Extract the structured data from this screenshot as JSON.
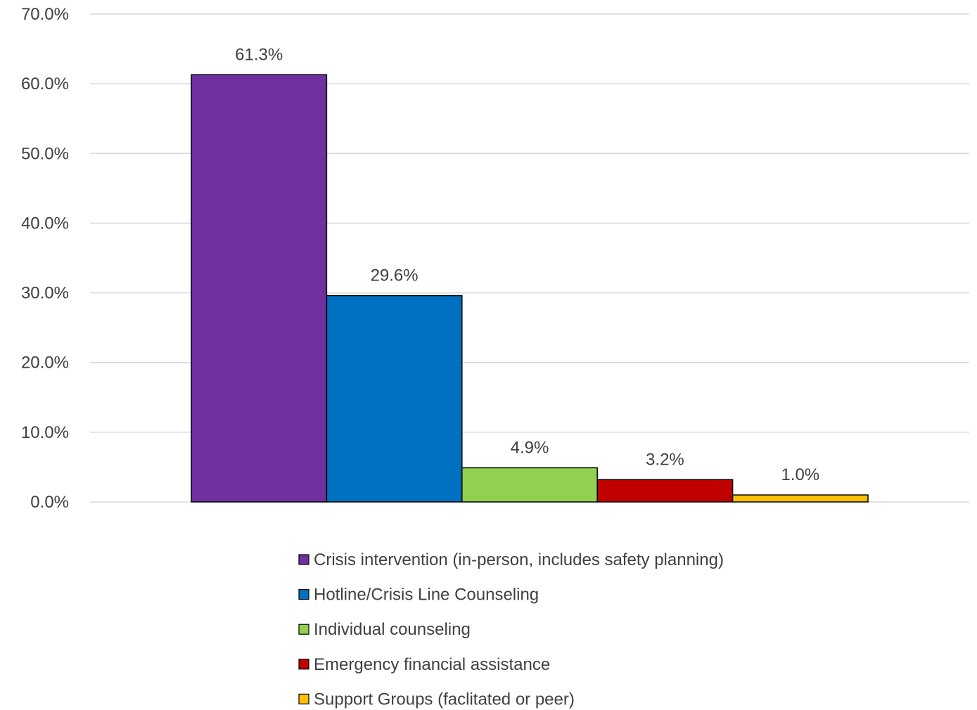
{
  "chart_data": {
    "type": "bar",
    "title": "",
    "xlabel": "",
    "ylabel": "",
    "ylim": [
      0,
      70
    ],
    "yticks": [
      "0.0%",
      "10.0%",
      "20.0%",
      "30.0%",
      "40.0%",
      "50.0%",
      "60.0%",
      "70.0%"
    ],
    "grid": true,
    "legend_position": "bottom",
    "series": [
      {
        "name": "Crisis intervention (in-person, includes safety planning)",
        "value": 61.3,
        "label": "61.3%",
        "color": "#7030A0"
      },
      {
        "name": "Hotline/Crisis Line Counseling",
        "value": 29.6,
        "label": "29.6%",
        "color": "#0070C0"
      },
      {
        "name": "Individual counseling",
        "value": 4.9,
        "label": "4.9%",
        "color": "#92D050"
      },
      {
        "name": "Emergency financial assistance",
        "value": 3.2,
        "label": "3.2%",
        "color": "#C00000"
      },
      {
        "name": "Support Groups (faclitated or peer)",
        "value": 1.0,
        "label": "1.0%",
        "color": "#FFC000"
      }
    ]
  }
}
